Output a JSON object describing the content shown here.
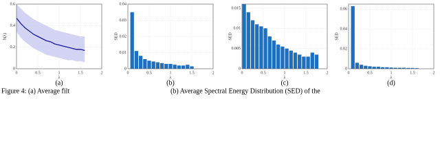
{
  "chart_data": [
    {
      "type": "line",
      "panel_label": "(a)",
      "ylabel": "h(λ)",
      "xlabel": "λ",
      "x": [
        0,
        0.1,
        0.2,
        0.3,
        0.4,
        0.5,
        0.6,
        0.7,
        0.8,
        0.9,
        1.0,
        1.1,
        1.2,
        1.3,
        1.4,
        1.5,
        1.6
      ],
      "values": [
        0.47,
        0.42,
        0.38,
        0.35,
        0.32,
        0.3,
        0.28,
        0.26,
        0.25,
        0.23,
        0.22,
        0.21,
        0.2,
        0.19,
        0.18,
        0.18,
        0.17
      ],
      "band_upper": [
        0.6,
        0.56,
        0.52,
        0.49,
        0.46,
        0.44,
        0.42,
        0.4,
        0.38,
        0.36,
        0.35,
        0.34,
        0.33,
        0.32,
        0.31,
        0.3,
        0.3
      ],
      "band_lower": [
        0.34,
        0.29,
        0.25,
        0.22,
        0.19,
        0.17,
        0.15,
        0.13,
        0.12,
        0.11,
        0.1,
        0.09,
        0.08,
        0.08,
        0.07,
        0.07,
        0.06
      ],
      "color": "#1a1aa0",
      "band_color": "#c8c8f0",
      "xlim": [
        0,
        2
      ],
      "xticks": [
        0,
        0.5,
        1,
        1.5,
        2
      ],
      "ylim": [
        0,
        0.6
      ],
      "yticks": [
        0,
        0.2,
        0.4,
        0.6
      ],
      "grid": true
    },
    {
      "type": "bar",
      "panel_label": "(b)",
      "ylabel": "SED",
      "xlabel": "λ",
      "x": [
        0.1,
        0.2,
        0.3,
        0.4,
        0.5,
        0.6,
        0.7,
        0.8,
        0.9,
        1.0,
        1.1,
        1.2,
        1.3,
        1.4,
        1.5
      ],
      "values": [
        0.035,
        0.011,
        0.008,
        0.006,
        0.005,
        0.0045,
        0.004,
        0.0035,
        0.003,
        0.003,
        0.0025,
        0.002,
        0.002,
        0.0025,
        0.0015
      ],
      "color": "#1f6fc0",
      "xlim": [
        0,
        2
      ],
      "xticks": [
        0,
        0.5,
        1,
        1.5,
        2
      ],
      "ylim": [
        0,
        0.04
      ],
      "yticks": [
        0,
        0.01,
        0.02,
        0.03,
        0.04
      ],
      "grid": true
    },
    {
      "type": "bar",
      "panel_label": "(c)",
      "ylabel": "SED",
      "xlabel": "λ",
      "x": [
        0.05,
        0.15,
        0.25,
        0.35,
        0.45,
        0.55,
        0.65,
        0.75,
        0.85,
        0.95,
        1.05,
        1.15,
        1.25,
        1.35,
        1.45,
        1.55,
        1.65,
        1.75
      ],
      "values": [
        0.016,
        0.014,
        0.012,
        0.011,
        0.0105,
        0.01,
        0.008,
        0.007,
        0.006,
        0.0055,
        0.005,
        0.0045,
        0.004,
        0.0035,
        0.003,
        0.003,
        0.004,
        0.0035
      ],
      "color": "#1f6fc0",
      "xlim": [
        0,
        2
      ],
      "xticks": [
        0,
        0.5,
        1,
        1.5,
        2
      ],
      "ylim": [
        0,
        0.016
      ],
      "yticks": [
        0,
        0.005,
        0.01,
        0.015
      ],
      "grid": true
    },
    {
      "type": "bar",
      "panel_label": "(d)",
      "ylabel": "SED",
      "xlabel": "λ",
      "x": [
        0.1,
        0.2,
        0.3,
        0.4,
        0.5,
        0.6,
        0.7,
        0.8,
        0.9,
        1.0,
        1.1,
        1.2,
        1.3,
        1.4,
        1.5,
        1.6
      ],
      "values": [
        0.063,
        0.006,
        0.004,
        0.003,
        0.0025,
        0.002,
        0.002,
        0.0015,
        0.0015,
        0.0012,
        0.001,
        0.001,
        0.001,
        0.0008,
        0.0008,
        0.0006
      ],
      "color": "#1f6fc0",
      "xlim": [
        0,
        2
      ],
      "xticks": [
        0,
        0.5,
        1,
        1.5,
        2
      ],
      "ylim": [
        0,
        0.065
      ],
      "yticks": [
        0,
        0.02,
        0.04,
        0.06
      ],
      "grid": true
    }
  ],
  "caption": {
    "lead": "Figure 4: (a) Average filt",
    "middle": "(b) Average Spectral Energy Distribution (SED) of the"
  }
}
